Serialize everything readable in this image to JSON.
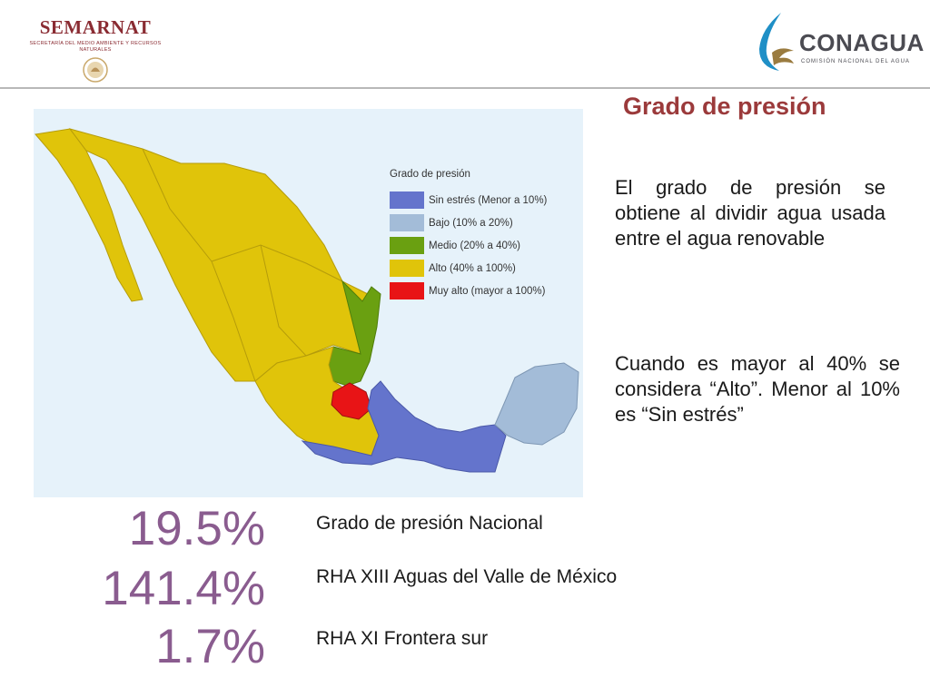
{
  "header": {
    "semarnat": {
      "wordmark": "SEMARNAT",
      "subtitle": "SECRETARÍA DEL MEDIO AMBIENTE Y RECURSOS NATURALES"
    },
    "conagua": {
      "wordmark": "CONAGUA",
      "subtitle": "COMISIÓN NACIONAL DEL AGUA"
    }
  },
  "title": "Grado de presión",
  "legend": {
    "title": "Grado de presión",
    "items": [
      {
        "label": "Sin estrés (Menor a 10%)",
        "color": "#6474cc"
      },
      {
        "label": "Bajo (10% a 20%)",
        "color": "#a3bcd8"
      },
      {
        "label": "Medio (20% a 40%)",
        "color": "#6aa011"
      },
      {
        "label": "Alto (40% a 100%)",
        "color": "#e0c40a"
      },
      {
        "label": "Muy alto (mayor a 100%)",
        "color": "#e81416"
      }
    ]
  },
  "paragraphs": [
    "El grado de presión se obtiene al dividir agua usada entre el agua renovable",
    "Cuando es mayor al 40% se considera “Alto”. Menor al 10% es “Sin estrés”"
  ],
  "stats": [
    {
      "value": "19.5%",
      "label": "Grado de presión Nacional"
    },
    {
      "value": "141.4%",
      "label": "RHA XIII Aguas del Valle de México"
    },
    {
      "value": "1.7%",
      "label": "RHA XI Frontera sur"
    }
  ]
}
